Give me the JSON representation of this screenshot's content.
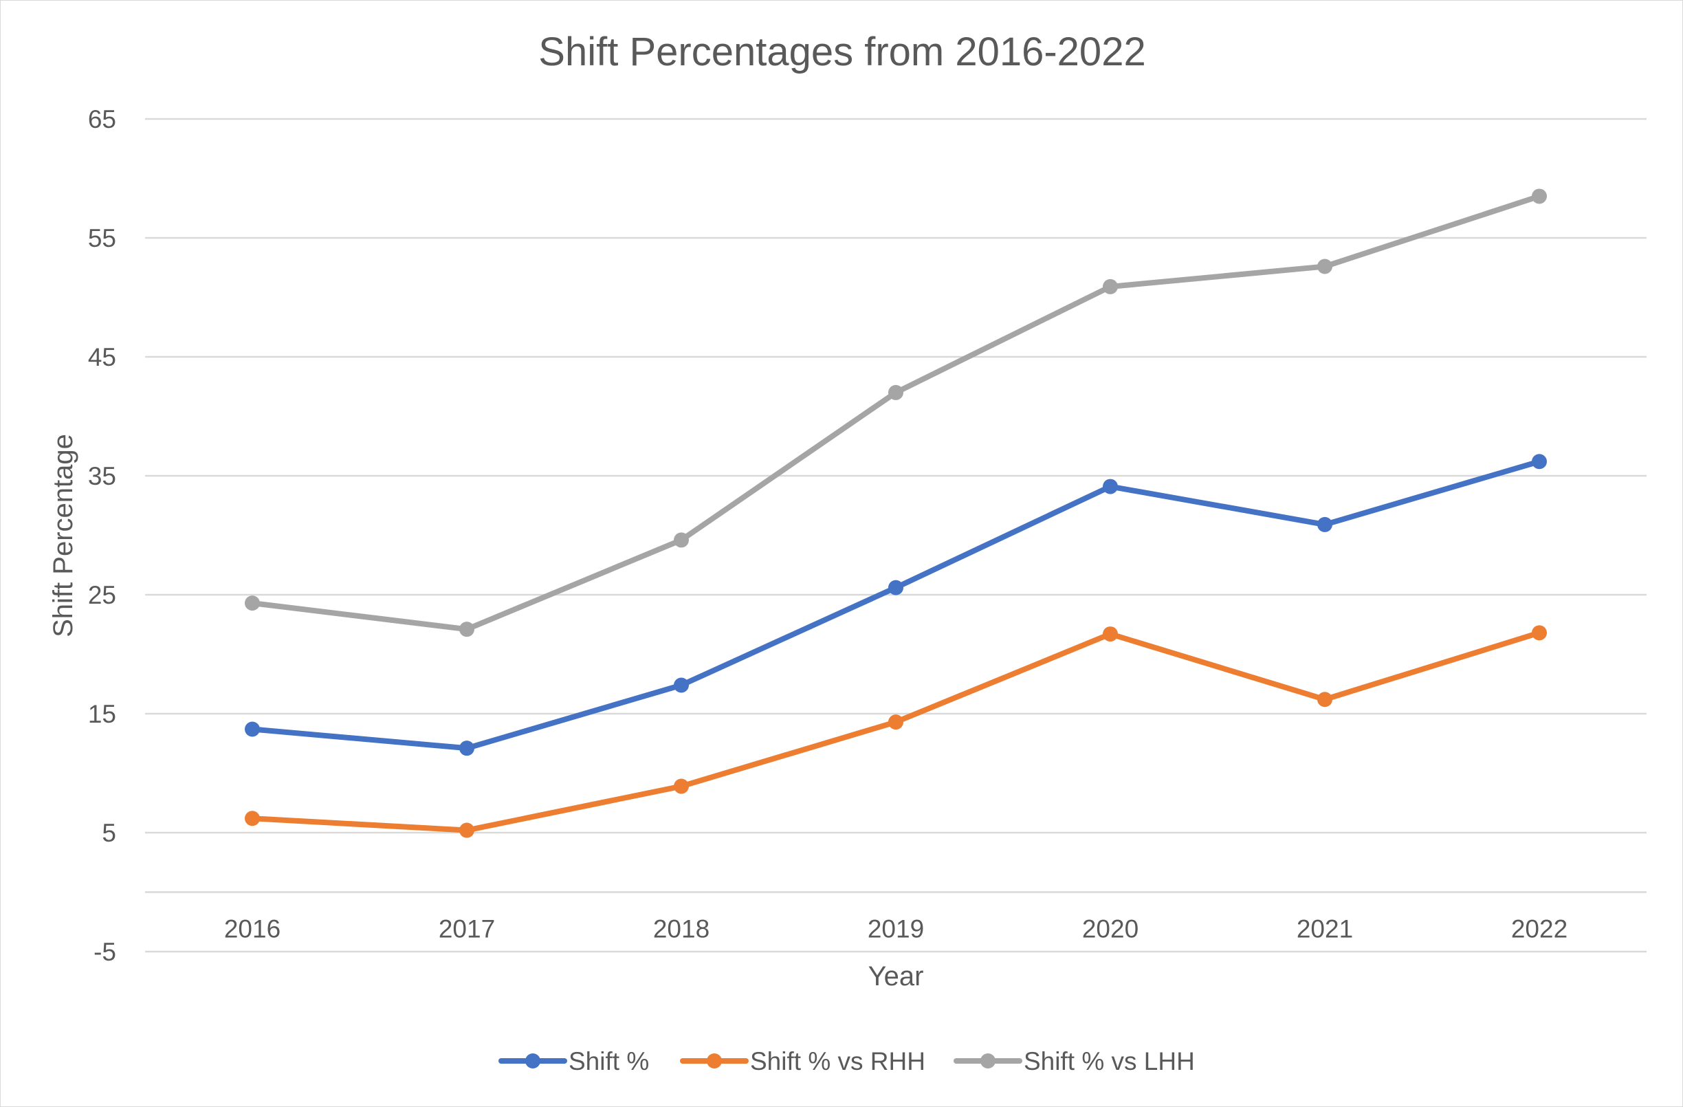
{
  "chart_data": {
    "type": "line",
    "title": "Shift Percentages from 2016-2022",
    "xlabel": "Year",
    "ylabel": "Shift Percentage",
    "categories": [
      "2016",
      "2017",
      "2018",
      "2019",
      "2020",
      "2021",
      "2022"
    ],
    "y_ticks": [
      "65",
      "55",
      "45",
      "35",
      "25",
      "15",
      "5",
      "-5"
    ],
    "ylim": [
      -5,
      65
    ],
    "x_axis_crosses_at": 0,
    "grid": true,
    "legend_position": "bottom",
    "series": [
      {
        "name": "Shift %",
        "color": "#4472C4",
        "values": [
          13.7,
          12.1,
          17.4,
          25.6,
          34.1,
          30.9,
          36.2
        ]
      },
      {
        "name": "Shift % vs RHH",
        "color": "#ED7D31",
        "values": [
          6.2,
          5.2,
          8.9,
          14.3,
          21.7,
          16.2,
          21.8
        ]
      },
      {
        "name": "Shift % vs LHH",
        "color": "#A5A5A5",
        "values": [
          24.3,
          22.1,
          29.6,
          42.0,
          50.9,
          52.6,
          58.5
        ]
      }
    ]
  }
}
